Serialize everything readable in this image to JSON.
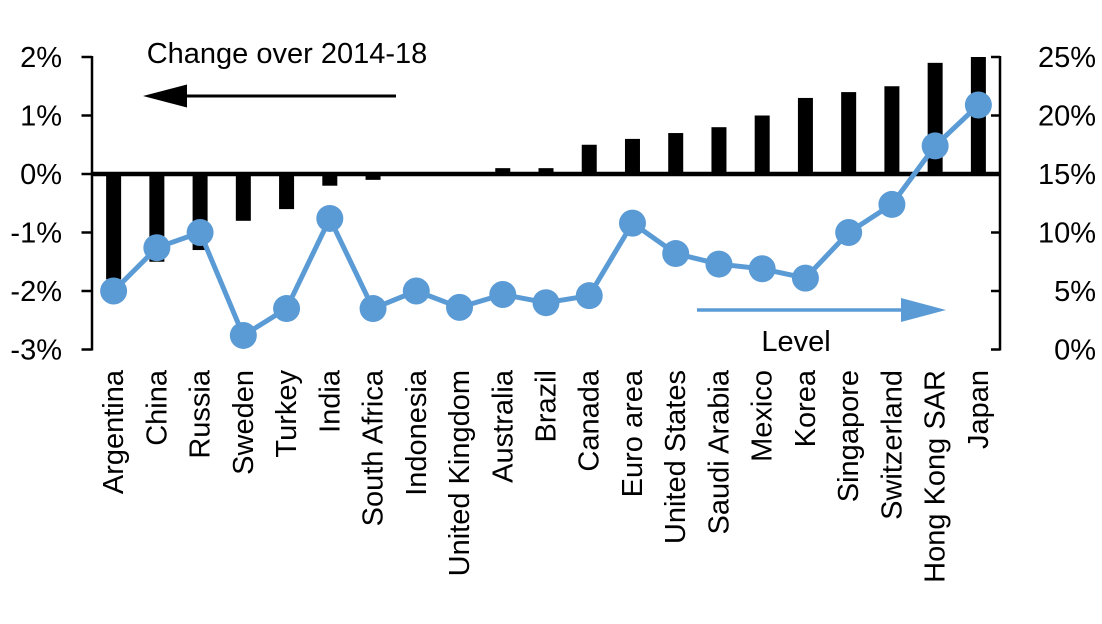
{
  "chart_data": {
    "type": "combo-bar-line",
    "title": "",
    "categories": [
      "Argentina",
      "China",
      "Russia",
      "Sweden",
      "Turkey",
      "India",
      "South Africa",
      "Indonesia",
      "United Kingdom",
      "Australia",
      "Brazil",
      "Canada",
      "Euro area",
      "United States",
      "Saudi Arabia",
      "Mexico",
      "Korea",
      "Singapore",
      "Switzerland",
      "Hong Kong SAR",
      "Japan"
    ],
    "series": [
      {
        "name": "Change over 2014-18",
        "type": "bar",
        "axis": "left",
        "color": "#000000",
        "values": [
          -1.8,
          -1.5,
          -1.3,
          -0.8,
          -0.6,
          -0.2,
          -0.1,
          0,
          0,
          0.1,
          0.1,
          0.5,
          0.6,
          0.7,
          0.8,
          1.0,
          1.3,
          1.4,
          1.5,
          1.9,
          2.0
        ]
      },
      {
        "name": "Level",
        "type": "line",
        "axis": "right",
        "color": "#5b9bd5",
        "values": [
          5.0,
          8.7,
          10.0,
          1.2,
          3.5,
          11.2,
          3.5,
          5.0,
          3.6,
          4.7,
          4.0,
          4.6,
          10.8,
          8.2,
          7.3,
          6.9,
          6.1,
          10.0,
          12.4,
          17.4,
          20.9
        ]
      }
    ],
    "left_axis": {
      "min": -3,
      "max": 2,
      "ticks": [
        {
          "label": "2%",
          "value": 2
        },
        {
          "label": "1%",
          "value": 1
        },
        {
          "label": "0%",
          "value": 0
        },
        {
          "label": "-1%",
          "value": -1
        },
        {
          "label": "-2%",
          "value": -2
        },
        {
          "label": "-3%",
          "value": -3
        }
      ]
    },
    "right_axis": {
      "min": 0,
      "max": 25,
      "ticks": [
        {
          "label": "25%",
          "value": 25
        },
        {
          "label": "20%",
          "value": 20
        },
        {
          "label": "15%",
          "value": 15
        },
        {
          "label": "10%",
          "value": 10
        },
        {
          "label": "5%",
          "value": 5
        },
        {
          "label": "0%",
          "value": 0
        }
      ]
    },
    "annotations": {
      "bar_arrow_label": "Change over 2014-18",
      "line_arrow_label": "Level"
    },
    "grid": false,
    "legend_position": "in-plot arrow annotations"
  }
}
